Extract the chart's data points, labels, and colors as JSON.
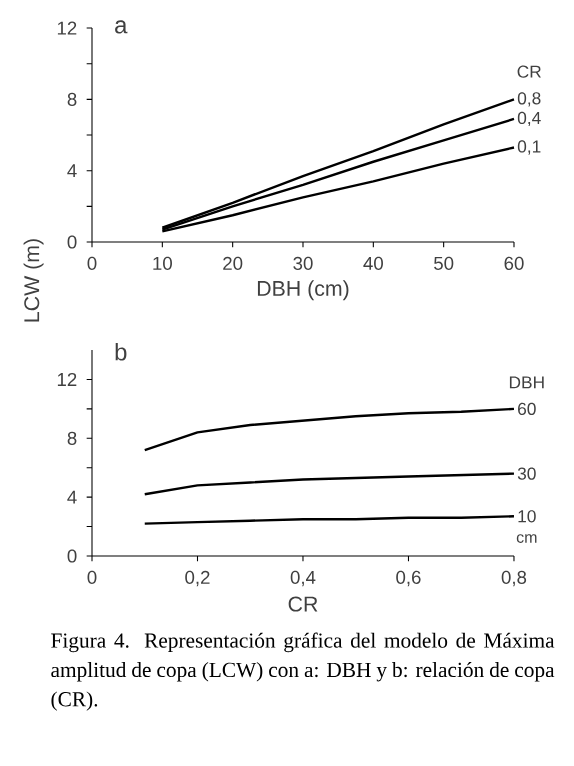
{
  "chart_data": [
    {
      "type": "line",
      "title": "a",
      "xlabel": "DBH (cm)",
      "ylabel": "LCW (m)",
      "legend_title": "CR",
      "x": [
        10,
        20,
        30,
        40,
        50,
        60
      ],
      "series": [
        {
          "name": "0,8",
          "color": "#000000",
          "values": [
            0.8,
            2.2,
            3.7,
            5.1,
            6.6,
            8.0
          ]
        },
        {
          "name": "0,4",
          "color": "#000000",
          "values": [
            0.7,
            2.0,
            3.2,
            4.5,
            5.7,
            6.9
          ]
        },
        {
          "name": "0,1",
          "color": "#000000",
          "values": [
            0.6,
            1.5,
            2.5,
            3.4,
            4.4,
            5.3
          ]
        }
      ],
      "xlim": [
        0,
        60
      ],
      "xticks": [
        0,
        10,
        20,
        30,
        40,
        50,
        60
      ],
      "ylim": [
        0,
        12
      ],
      "yticks": [
        0,
        {
          "value": 2,
          "label": null
        },
        4,
        {
          "value": 6,
          "label": null
        },
        8,
        {
          "value": 10,
          "label": null
        },
        12
      ],
      "grid": false,
      "legend": false,
      "marker": "none",
      "line_style": "solid"
    },
    {
      "type": "line",
      "title": "b",
      "xlabel": "CR",
      "legend_title": "DBH",
      "x": [
        0.1,
        0.2,
        0.3,
        0.4,
        0.5,
        0.6,
        0.7,
        0.8
      ],
      "series": [
        {
          "name": "60",
          "color": "#000000",
          "values": [
            7.2,
            8.4,
            8.9,
            9.2,
            9.5,
            9.7,
            9.8,
            10.0
          ]
        },
        {
          "name": "30",
          "color": "#000000",
          "values": [
            4.2,
            4.8,
            5.0,
            5.2,
            5.3,
            5.4,
            5.5,
            5.6
          ]
        },
        {
          "name": "10",
          "color": "#000000",
          "values": [
            2.2,
            2.3,
            2.4,
            2.5,
            2.5,
            2.6,
            2.6,
            2.7
          ]
        }
      ],
      "xlim": [
        0,
        0.8
      ],
      "xticks": [
        0,
        {
          "value": 0.2,
          "label": "0,2"
        },
        {
          "value": 0.4,
          "label": "0,4"
        },
        {
          "value": 0.6,
          "label": "0,6"
        },
        {
          "value": 0.8,
          "label": "0,8"
        }
      ],
      "ylim": [
        0,
        14
      ],
      "yticks": [
        0,
        {
          "value": 2,
          "label": null
        },
        4,
        {
          "value": 6,
          "label": null
        },
        8,
        {
          "value": 10,
          "label": null
        },
        12
      ],
      "annotations": [
        "cm",
        "Figura 4. Representación gráfica del modelo de Máxima amplitud de copa (LCW) con a: DBH y b: relación de copa (CR)."
      ],
      "grid": false,
      "legend": false,
      "marker": "none",
      "line_style": "solid"
    }
  ]
}
